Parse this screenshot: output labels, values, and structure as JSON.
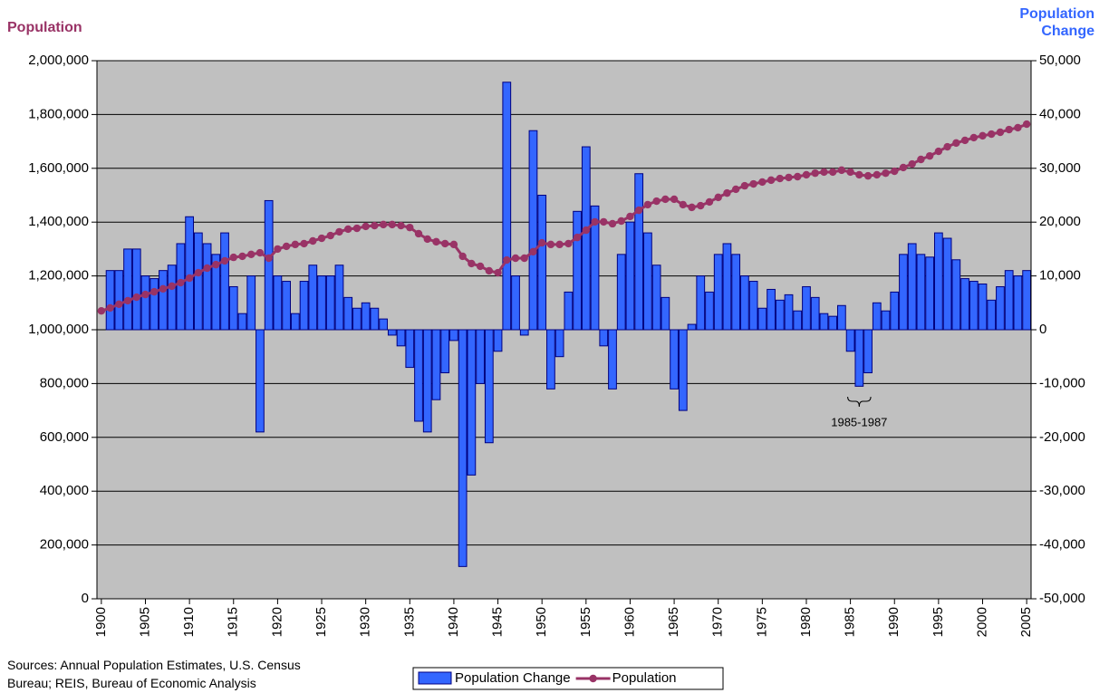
{
  "chart_data": {
    "type": "combo",
    "ylabel": "Population",
    "y2label": "Population Change",
    "x": [
      1900,
      1901,
      1902,
      1903,
      1904,
      1905,
      1906,
      1907,
      1908,
      1909,
      1910,
      1911,
      1912,
      1913,
      1914,
      1915,
      1916,
      1917,
      1918,
      1919,
      1920,
      1921,
      1922,
      1923,
      1924,
      1925,
      1926,
      1927,
      1928,
      1929,
      1930,
      1931,
      1932,
      1933,
      1934,
      1935,
      1936,
      1937,
      1938,
      1939,
      1940,
      1941,
      1942,
      1943,
      1944,
      1945,
      1946,
      1947,
      1948,
      1949,
      1950,
      1951,
      1952,
      1953,
      1954,
      1955,
      1956,
      1957,
      1958,
      1959,
      1960,
      1961,
      1962,
      1963,
      1964,
      1965,
      1966,
      1967,
      1968,
      1969,
      1970,
      1971,
      1972,
      1973,
      1974,
      1975,
      1976,
      1977,
      1978,
      1979,
      1980,
      1981,
      1982,
      1983,
      1984,
      1985,
      1986,
      1987,
      1988,
      1989,
      1990,
      1991,
      1992,
      1993,
      1994,
      1995,
      1996,
      1997,
      1998,
      1999,
      2000,
      2001,
      2002,
      2003,
      2004,
      2005
    ],
    "xlim": [
      1899.5,
      2005.5
    ],
    "xticks": [
      1900,
      1905,
      1910,
      1915,
      1920,
      1925,
      1930,
      1935,
      1940,
      1945,
      1950,
      1955,
      1960,
      1965,
      1970,
      1975,
      1980,
      1985,
      1990,
      1995,
      2000,
      2005
    ],
    "ylim": [
      0,
      2000000
    ],
    "yticks": [
      0,
      {
        "value": 200000,
        "label": "200,000"
      },
      {
        "value": 400000,
        "label": "400,000"
      },
      {
        "value": 600000,
        "label": "600,000"
      },
      {
        "value": 800000,
        "label": "800,000"
      },
      {
        "value": 1000000,
        "label": "1,000,000"
      },
      {
        "value": 1200000,
        "label": "1,200,000"
      },
      {
        "value": 1400000,
        "label": "1,400,000"
      },
      {
        "value": 1600000,
        "label": "1,600,000"
      },
      {
        "value": 1800000,
        "label": "1,800,000"
      },
      {
        "value": 2000000,
        "label": "2,000,000"
      }
    ],
    "y2lim": [
      -50000,
      50000
    ],
    "y2ticks": [
      {
        "value": -50000,
        "label": "-50,000"
      },
      {
        "value": -40000,
        "label": "-40,000"
      },
      {
        "value": -30000,
        "label": "-30,000"
      },
      {
        "value": -20000,
        "label": "-20,000"
      },
      {
        "value": -10000,
        "label": "-10,000"
      },
      0,
      {
        "value": 10000,
        "label": "10,000"
      },
      {
        "value": 20000,
        "label": "20,000"
      },
      {
        "value": 30000,
        "label": "30,000"
      },
      {
        "value": 40000,
        "label": "40,000"
      },
      {
        "value": 50000,
        "label": "50,000"
      }
    ],
    "grid": true,
    "series": [
      {
        "name": "Population Change",
        "type": "bar",
        "axis": "y2",
        "color": "#3366ff",
        "values": [
          null,
          11000,
          11000,
          15000,
          15000,
          10000,
          9500,
          11000,
          12000,
          16000,
          21000,
          18000,
          16000,
          14000,
          18000,
          8000,
          3000,
          10000,
          -19000,
          24000,
          10000,
          9000,
          3000,
          9000,
          12000,
          10000,
          10000,
          12000,
          6000,
          4000,
          5000,
          4000,
          2000,
          -1000,
          -3000,
          -7000,
          -17000,
          -19000,
          -13000,
          -8000,
          -2000,
          -44000,
          -27000,
          -10000,
          -21000,
          -4000,
          46000,
          10000,
          -1000,
          37000,
          25000,
          -11000,
          -5000,
          7000,
          22000,
          34000,
          23000,
          -3000,
          -11000,
          14000,
          20000,
          29000,
          18000,
          12000,
          6000,
          -11000,
          -15000,
          1000,
          10000,
          7000,
          14000,
          16000,
          14000,
          10000,
          9000,
          4000,
          7500,
          5500,
          6500,
          3500,
          8000,
          6000,
          3000,
          2500,
          4500,
          -4000,
          -10500,
          -8000,
          5000,
          3500,
          7000,
          14000,
          16000,
          14000,
          13500,
          18000,
          17000,
          13000,
          9500,
          9000,
          8500,
          5500,
          8000,
          11000,
          10000,
          11000
        ]
      },
      {
        "name": "Population",
        "type": "line",
        "axis": "y",
        "color": "#993366",
        "values": [
          1070000,
          1081000,
          1095000,
          1108000,
          1121000,
          1131000,
          1141000,
          1152000,
          1162000,
          1175000,
          1192000,
          1212000,
          1229000,
          1242000,
          1256000,
          1269000,
          1273000,
          1280000,
          1286000,
          1266000,
          1300000,
          1310000,
          1317000,
          1320000,
          1330000,
          1340000,
          1350000,
          1364000,
          1374000,
          1377000,
          1384000,
          1387000,
          1391000,
          1391000,
          1387000,
          1380000,
          1357000,
          1337000,
          1327000,
          1320000,
          1317000,
          1273000,
          1246000,
          1236000,
          1219000,
          1212000,
          1259000,
          1266000,
          1266000,
          1290000,
          1323000,
          1317000,
          1317000,
          1320000,
          1343000,
          1370000,
          1401000,
          1401000,
          1394000,
          1404000,
          1421000,
          1444000,
          1465000,
          1478000,
          1485000,
          1485000,
          1465000,
          1455000,
          1461000,
          1475000,
          1492000,
          1508000,
          1522000,
          1535000,
          1542000,
          1549000,
          1556000,
          1562000,
          1566000,
          1569000,
          1576000,
          1582000,
          1586000,
          1586000,
          1593000,
          1586000,
          1576000,
          1572000,
          1576000,
          1582000,
          1589000,
          1603000,
          1616000,
          1633000,
          1646000,
          1663000,
          1680000,
          1694000,
          1704000,
          1714000,
          1721000,
          1727000,
          1734000,
          1744000,
          1751000,
          1764000
        ]
      }
    ],
    "annotation": "1985-1987",
    "source": "Sources: Annual Population Estimates, U.S. Census Bureau; REIS, Bureau of Economic Analysis"
  }
}
